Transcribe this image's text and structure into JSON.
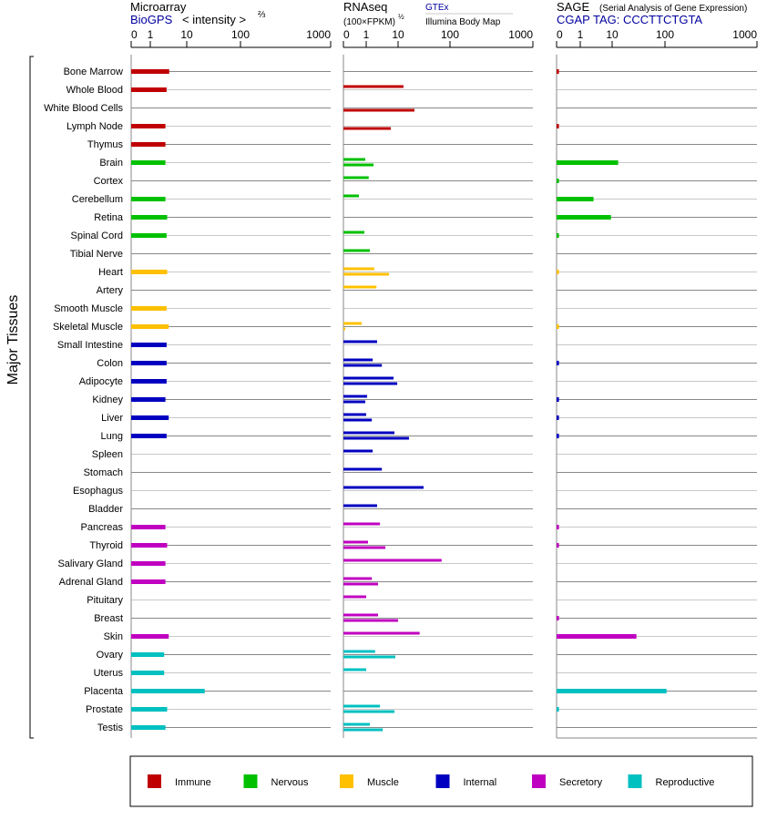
{
  "headers": {
    "microarray": {
      "title": "Microarray",
      "source": "BioGPS",
      "unit": "< intensity >",
      "unit_exp": "⅔"
    },
    "rnaseq": {
      "title": "RNAseq",
      "unit": "(100×FPKM)",
      "unit_exp": "½",
      "source_top": "GTEx",
      "source_bottom": "Illumina Body Map"
    },
    "sage": {
      "title": "SAGE",
      "subtitle": "(Serial Analysis of Gene Expression)",
      "tag": "CGAP TAG: CCCTTCTGTA"
    }
  },
  "y_group_label": "Major Tissues",
  "colors": {
    "Immune": "#c00000",
    "Nervous": "#00c000",
    "Muscle": "#ffc000",
    "Internal": "#0000c0",
    "Secretory": "#c000c0",
    "Reproductive": "#00c0c0"
  },
  "legend": [
    "Immune",
    "Nervous",
    "Muscle",
    "Internal",
    "Secretory",
    "Reproductive"
  ],
  "chart_data": {
    "type": "bar",
    "orientation": "horizontal",
    "grid": true,
    "legend_position": "bottom",
    "tick_labels": [
      "0",
      "1",
      "10",
      "100",
      "1000"
    ],
    "tick_values": [
      0,
      1,
      10,
      100,
      1000
    ],
    "categories": [
      "Bone Marrow",
      "Whole Blood",
      "White Blood Cells",
      "Lymph Node",
      "Thymus",
      "Brain",
      "Cortex",
      "Cerebellum",
      "Retina",
      "Spinal Cord",
      "Tibial Nerve",
      "Heart",
      "Artery",
      "Smooth Muscle",
      "Skeletal Muscle",
      "Small Intestine",
      "Colon",
      "Adipocyte",
      "Kidney",
      "Liver",
      "Lung",
      "Spleen",
      "Stomach",
      "Esophagus",
      "Bladder",
      "Pancreas",
      "Thyroid",
      "Salivary Gland",
      "Adrenal Gland",
      "Pituitary",
      "Breast",
      "Skin",
      "Ovary",
      "Uterus",
      "Placenta",
      "Prostate",
      "Testis"
    ],
    "groups": [
      "Immune",
      "Immune",
      "Immune",
      "Immune",
      "Immune",
      "Nervous",
      "Nervous",
      "Nervous",
      "Nervous",
      "Nervous",
      "Nervous",
      "Muscle",
      "Muscle",
      "Muscle",
      "Muscle",
      "Internal",
      "Internal",
      "Internal",
      "Internal",
      "Internal",
      "Internal",
      "Internal",
      "Internal",
      "Internal",
      "Internal",
      "Secretory",
      "Secretory",
      "Secretory",
      "Secretory",
      "Secretory",
      "Secretory",
      "Secretory",
      "Reproductive",
      "Reproductive",
      "Reproductive",
      "Reproductive",
      "Reproductive"
    ],
    "series": [
      {
        "panel": "microarray",
        "name": "BioGPS",
        "xlim": [
          0,
          1000
        ],
        "values": [
          3.3,
          2.8,
          null,
          2.6,
          2.6,
          2.6,
          null,
          2.6,
          2.9,
          2.8,
          null,
          2.9,
          null,
          2.8,
          3.2,
          2.8,
          2.8,
          2.8,
          2.6,
          3.2,
          2.8,
          null,
          null,
          null,
          null,
          2.6,
          2.9,
          2.6,
          2.6,
          null,
          null,
          3.2,
          2.4,
          2.4,
          21.6,
          2.9,
          2.6
        ]
      },
      {
        "panel": "rnaseq",
        "name": "GTEx",
        "xlim": [
          0,
          1000
        ],
        "values": [
          null,
          12.7,
          null,
          null,
          null,
          0.96,
          1.2,
          0.68,
          null,
          0.92,
          1.3,
          1.8,
          2.1,
          null,
          0.8,
          2.2,
          1.6,
          7.2,
          1.07,
          1.0,
          7.7,
          1.6,
          3.1,
          31,
          2.2,
          2.7,
          1.14,
          69,
          1.5,
          1.0,
          2.35,
          26,
          1.9,
          1.0,
          null,
          2.7,
          1.3
        ]
      },
      {
        "panel": "rnaseq",
        "name": "Illumina Body Map",
        "xlim": [
          0,
          1000
        ],
        "values": [
          null,
          null,
          20.7,
          5.9,
          null,
          1.7,
          null,
          null,
          null,
          null,
          null,
          5.2,
          null,
          null,
          0.08,
          null,
          3.1,
          9.4,
          0.96,
          1.5,
          16.2,
          null,
          null,
          null,
          null,
          null,
          4.0,
          null,
          2.35,
          null,
          10,
          null,
          8.2,
          null,
          null,
          7.7,
          3.3
        ]
      },
      {
        "panel": "sage",
        "name": "CGAP TAG: CCCTTCTGTA",
        "xlim": [
          0,
          1000
        ],
        "values": [
          0.1,
          null,
          null,
          0.1,
          null,
          13,
          0.1,
          2.6,
          9.2,
          0.1,
          null,
          0.1,
          null,
          null,
          0.1,
          null,
          0.1,
          null,
          0.1,
          0.1,
          0.1,
          null,
          null,
          null,
          null,
          0.1,
          0.1,
          null,
          null,
          null,
          0.1,
          28.8,
          null,
          null,
          104,
          0.1,
          null
        ]
      }
    ]
  }
}
